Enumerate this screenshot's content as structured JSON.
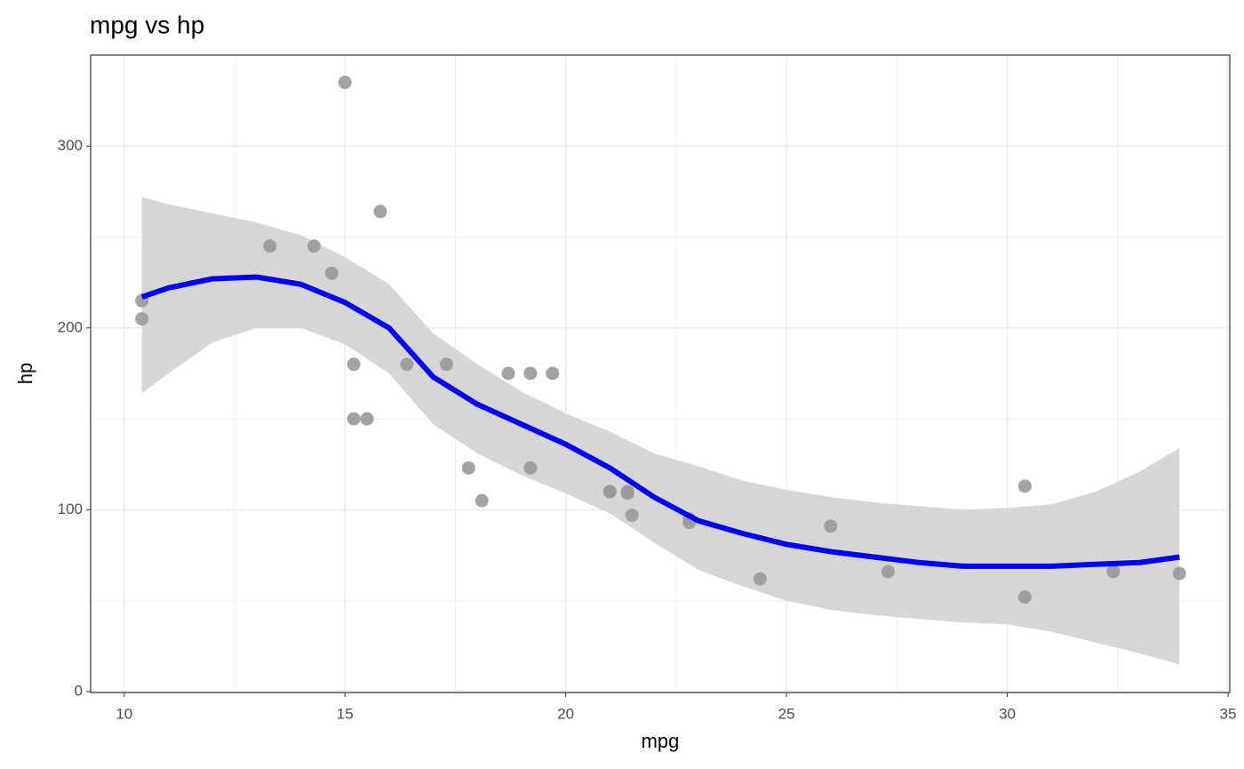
{
  "chart_data": {
    "type": "scatter",
    "title": "mpg vs hp",
    "x_label": "mpg",
    "y_label": "hp",
    "xlim": [
      9.24,
      35.04
    ],
    "ylim": [
      -0.5,
      350
    ],
    "xticks": [
      10,
      15,
      20,
      25,
      30,
      35
    ],
    "yticks": [
      0,
      100,
      200,
      300
    ],
    "grid": true,
    "series": [
      {
        "color": "#999999",
        "x": [
          21.0,
          21.0,
          22.8,
          21.4,
          18.7,
          18.1,
          14.3,
          24.4,
          22.8,
          19.2,
          17.8,
          16.4,
          17.3,
          15.2,
          10.4,
          10.4,
          14.7,
          32.4,
          30.4,
          33.9,
          21.5,
          15.5,
          15.2,
          13.3,
          19.2,
          27.3,
          26.0,
          30.4,
          15.8,
          19.7,
          15.0,
          21.4
        ],
        "values": [
          110,
          110,
          93,
          110,
          175,
          105,
          245,
          62,
          95,
          123,
          123,
          180,
          180,
          180,
          205,
          215,
          230,
          66,
          52,
          65,
          97,
          150,
          150,
          245,
          175,
          66,
          91,
          113,
          264,
          175,
          335,
          109
        ]
      }
    ],
    "smooth": {
      "color": "#0000ff",
      "x": [
        10.4,
        11,
        12,
        13,
        14,
        15,
        16,
        17,
        18,
        19,
        20,
        21,
        22,
        23,
        24,
        25,
        26,
        27,
        28,
        29,
        30,
        31,
        32,
        33,
        33.9
      ],
      "values": [
        217,
        222,
        227,
        228,
        224,
        214,
        200,
        173,
        158,
        147,
        136,
        123,
        107,
        94,
        87,
        81,
        77,
        74,
        71,
        69,
        69,
        69,
        70,
        71,
        74
      ]
    },
    "band": {
      "color": "#d6d6d6",
      "x": [
        10.4,
        11,
        12,
        13,
        14,
        15,
        16,
        17,
        18,
        19,
        20,
        21,
        22,
        23,
        24,
        25,
        26,
        27,
        28,
        29,
        30,
        31,
        32,
        33,
        33.9
      ],
      "upper": [
        272,
        268,
        263,
        258,
        251,
        239,
        224,
        197,
        180,
        165,
        153,
        143,
        131,
        124,
        116,
        111,
        107,
        104,
        102,
        100,
        101,
        103,
        110,
        121,
        134
      ],
      "lower": [
        164,
        175,
        192,
        200,
        200,
        191,
        175,
        147,
        131,
        119,
        109,
        98,
        82,
        67,
        58,
        50,
        45,
        42,
        40,
        38,
        37,
        33,
        27,
        21,
        15
      ]
    }
  }
}
